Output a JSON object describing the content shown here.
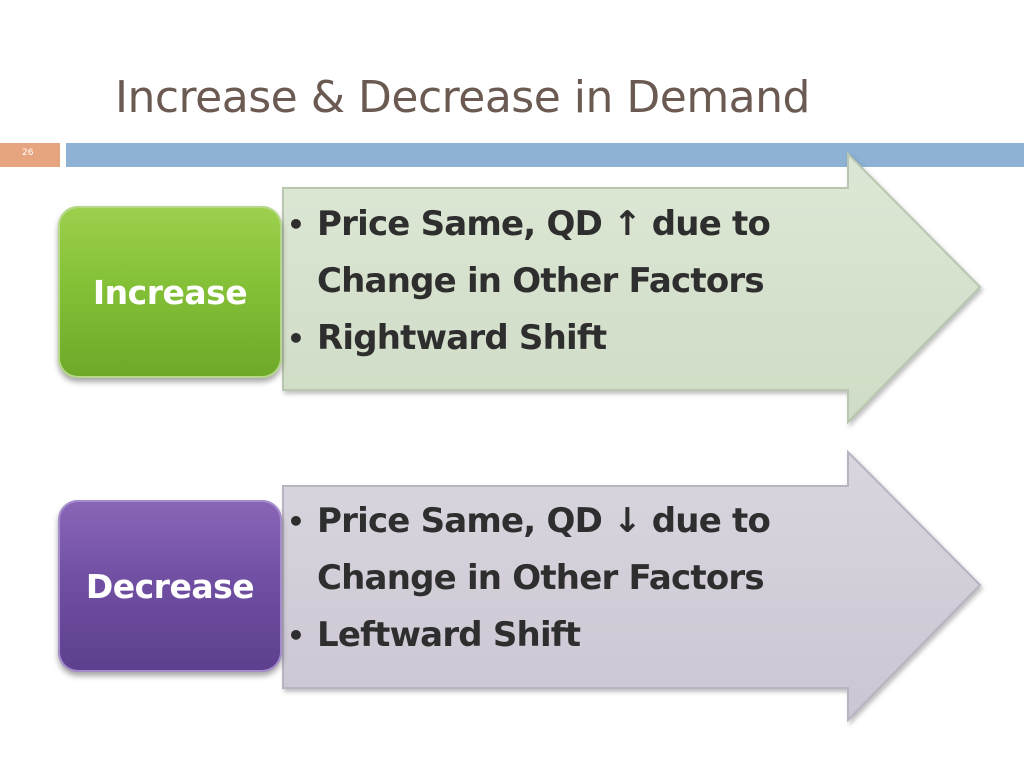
{
  "slide": {
    "title": "Increase & Decrease in Demand",
    "number": "26"
  },
  "colors": {
    "title": "#6b5a52",
    "accent_orange": "#e6a57e",
    "accent_blue": "#8eb2d4",
    "increase_green": "#84c137",
    "decrease_purple": "#7150a3",
    "increase_arrow": "#d7e2cf",
    "decrease_arrow": "#d4d0da"
  },
  "blocks": [
    {
      "label": "Increase",
      "bullets": [
        "Price Same, QD ↑ due to Change in Other Factors",
        "Rightward Shift"
      ]
    },
    {
      "label": "Decrease",
      "bullets": [
        "Price Same, QD ↓  due to Change in Other Factors",
        "Leftward Shift"
      ]
    }
  ]
}
